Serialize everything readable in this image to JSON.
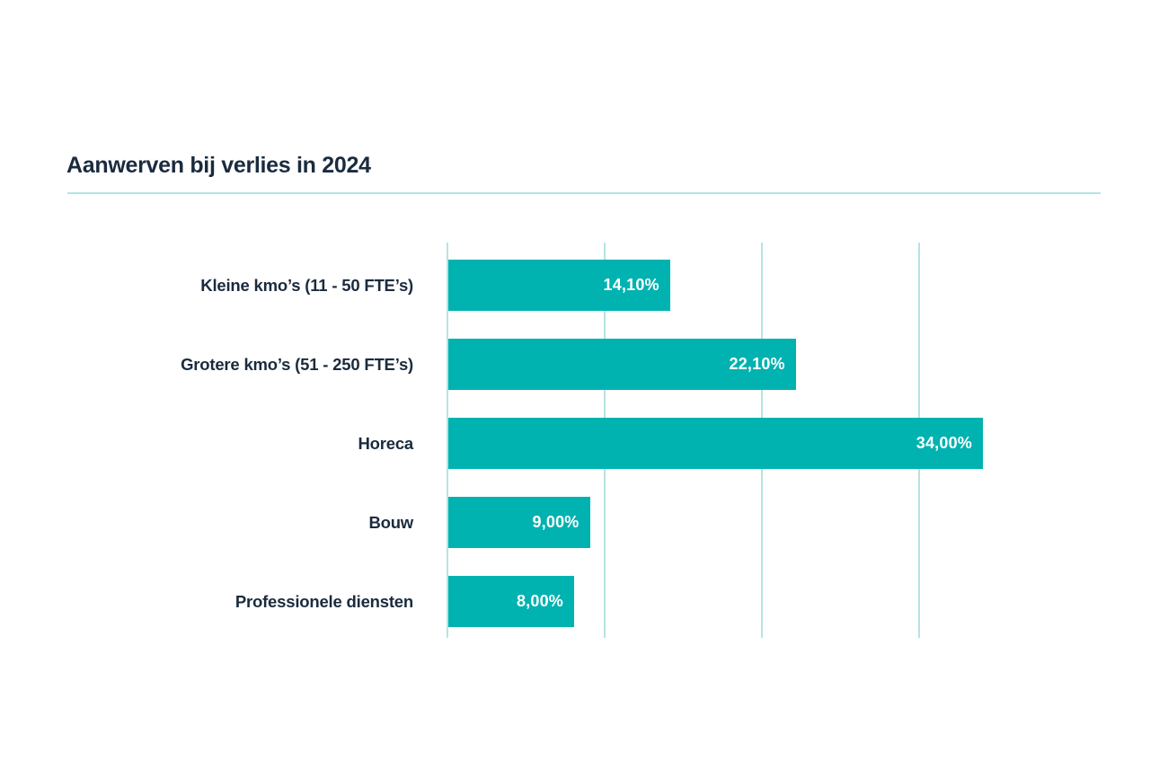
{
  "header": {
    "title": "Aanwerven bij verlies in 2024"
  },
  "colors": {
    "bar": "#00b2b0",
    "gridline": "#b5e4e4",
    "divider": "#b5e4e4",
    "title_text": "#1b2b3e",
    "category_text": "#1b2b3e",
    "value_text": "#ffffff",
    "background": "#ffffff"
  },
  "chart_data": {
    "type": "bar",
    "orientation": "horizontal",
    "title": "Aanwerven bij verlies in 2024",
    "categories": [
      "Kleine kmo’s (11 - 50 FTE’s)",
      "Grotere kmo’s (51 - 250 FTE’s)",
      "Horeca",
      "Bouw",
      "Professionele diensten"
    ],
    "values": [
      14.1,
      22.1,
      34.0,
      9.0,
      8.0
    ],
    "value_labels": [
      "14,10%",
      "22,10%",
      "34,00%",
      "9,00%",
      "8,00%"
    ],
    "xlabel": "",
    "ylabel": "",
    "xlim": [
      0,
      40
    ],
    "gridlines_percent": [
      0,
      10,
      20,
      30
    ],
    "grid": true,
    "legend": false,
    "tick_labels_visible": false
  }
}
